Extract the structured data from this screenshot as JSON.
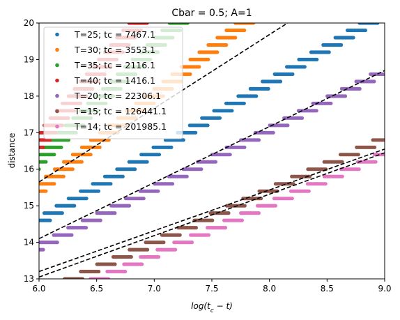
{
  "chart_data": {
    "type": "scatter",
    "title": "Cbar = 0.5; A=1",
    "xlabel_main": "log(t",
    "xlabel_sub": "c",
    "xlabel_tail": " − t)",
    "ylabel": "distance",
    "xlim": [
      6.0,
      9.0
    ],
    "ylim": [
      13,
      20
    ],
    "xticks": [
      "6.0",
      "6.5",
      "7.0",
      "7.5",
      "8.0",
      "8.5",
      "9.0"
    ],
    "yticks": [
      "13",
      "14",
      "15",
      "16",
      "17",
      "18",
      "19",
      "20"
    ],
    "legend_position": "upper left",
    "series": [
      {
        "name": "T=25; tc = 7467.1",
        "color": "#1f77b4",
        "d0": 14.6,
        "slope": 1.9
      },
      {
        "name": "T=30; tc = 3553.1",
        "color": "#ff7f0e",
        "d0": 15.5,
        "slope": 2.55
      },
      {
        "name": "T=35; tc = 2116.1",
        "color": "#2ca02c",
        "d0": 16.3,
        "slope": 3.1
      },
      {
        "name": "T=40; tc = 1416.1",
        "color": "#d62728",
        "d0": 16.8,
        "slope": 3.8
      },
      {
        "name": "T=20; tc = 22306.1",
        "color": "#9467bd",
        "d0": 13.9,
        "slope": 1.6
      },
      {
        "name": "T=15; tc = 126441.1",
        "color": "#8c564b",
        "d0": 12.6,
        "slope": 1.42
      },
      {
        "name": "T=14; tc = 201985.1",
        "color": "#e377c2",
        "d0": 12.3,
        "slope": 1.38
      }
    ],
    "fit_lines": [
      {
        "x": [
          6.0,
          9.0
        ],
        "y": [
          15.65,
          21.7
        ]
      },
      {
        "x": [
          6.0,
          9.0
        ],
        "y": [
          14.1,
          18.7
        ]
      },
      {
        "x": [
          6.0,
          9.0
        ],
        "y": [
          13.2,
          16.55
        ]
      },
      {
        "x": [
          6.0,
          9.0
        ],
        "y": [
          13.05,
          16.45
        ]
      }
    ]
  }
}
